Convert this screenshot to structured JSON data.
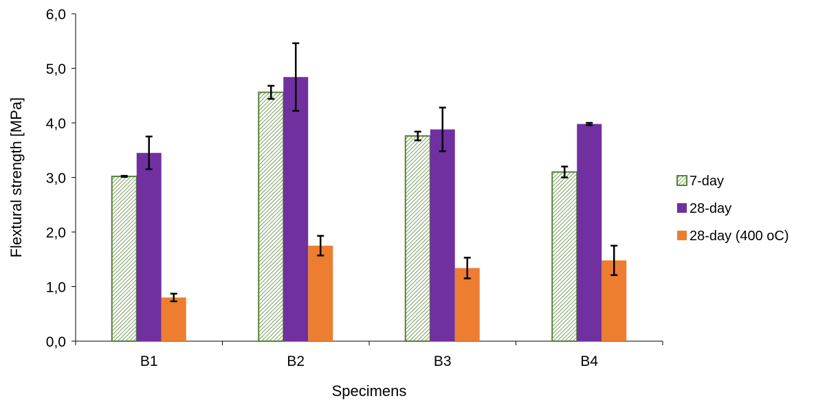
{
  "chart_data": {
    "type": "bar",
    "title": "",
    "xlabel": "Specimens",
    "ylabel": "Flextural strength [MPa]",
    "categories": [
      "B1",
      "B2",
      "B3",
      "B4"
    ],
    "ylim": [
      0,
      6
    ],
    "yticks": [
      "0,0",
      "1,0",
      "2,0",
      "3,0",
      "4,0",
      "5,0",
      "6,0"
    ],
    "grid": false,
    "legend_position": "right",
    "series": [
      {
        "name": "7-day",
        "values": [
          3.02,
          4.56,
          3.76,
          3.1
        ],
        "errors": [
          0.01,
          0.12,
          0.08,
          0.1
        ],
        "color": "#548235",
        "pattern": "hatched"
      },
      {
        "name": "28-day",
        "values": [
          3.45,
          4.84,
          3.88,
          3.98
        ],
        "errors": [
          0.3,
          0.62,
          0.4,
          0.02
        ],
        "color": "#7030A0",
        "pattern": "solid"
      },
      {
        "name": "28-day (400 oC)",
        "values": [
          0.8,
          1.75,
          1.34,
          1.48
        ],
        "errors": [
          0.07,
          0.18,
          0.19,
          0.27
        ],
        "color": "#ED7D31",
        "pattern": "solid"
      }
    ]
  }
}
